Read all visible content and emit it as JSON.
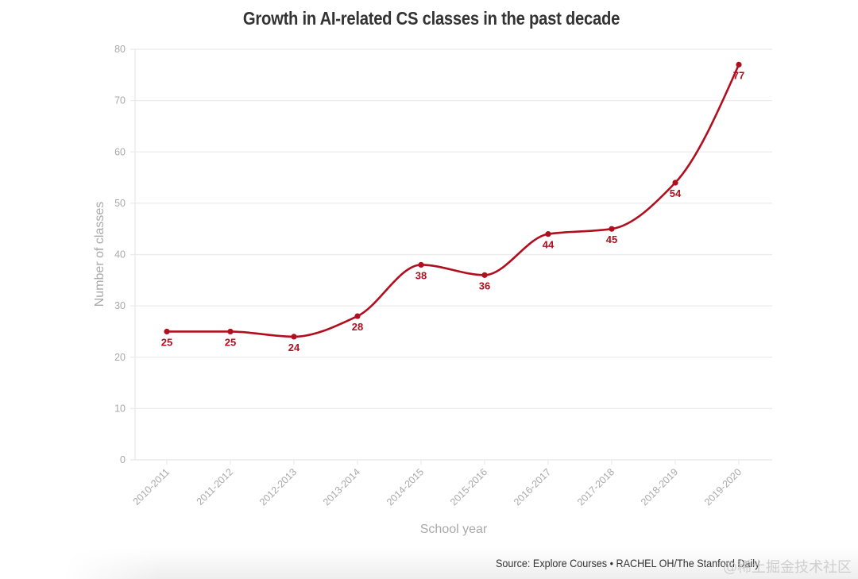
{
  "chart_data": {
    "type": "line",
    "title": "Growth in AI-related CS classes in the past decade",
    "xlabel": "School year",
    "ylabel": "Number of classes",
    "categories": [
      "2010-2011",
      "2011-2012",
      "2012-2013",
      "2013-2014",
      "2014-2015",
      "2015-2016",
      "2016-2017",
      "2017-2018",
      "2018-2019",
      "2019-2020"
    ],
    "series": [
      {
        "name": "Number of classes",
        "values": [
          25,
          25,
          24,
          28,
          38,
          36,
          44,
          45,
          54,
          77
        ],
        "color": "#b10f1f"
      }
    ],
    "ylim": [
      0,
      80
    ],
    "yticks": [
      0,
      10,
      20,
      30,
      40,
      50,
      60,
      70,
      80
    ],
    "grid": true,
    "smooth": true,
    "data_labels": true,
    "legend": "none"
  },
  "footer": {
    "source": "Source: Explore Courses • RACHEL OH/The Stanford Daily",
    "watermark": "@稀土掘金技术社区"
  },
  "colors": {
    "line": "#b10f1f",
    "gridline": "#ebebeb",
    "tick_text": "#a9a9a9",
    "title_text": "#333333"
  }
}
